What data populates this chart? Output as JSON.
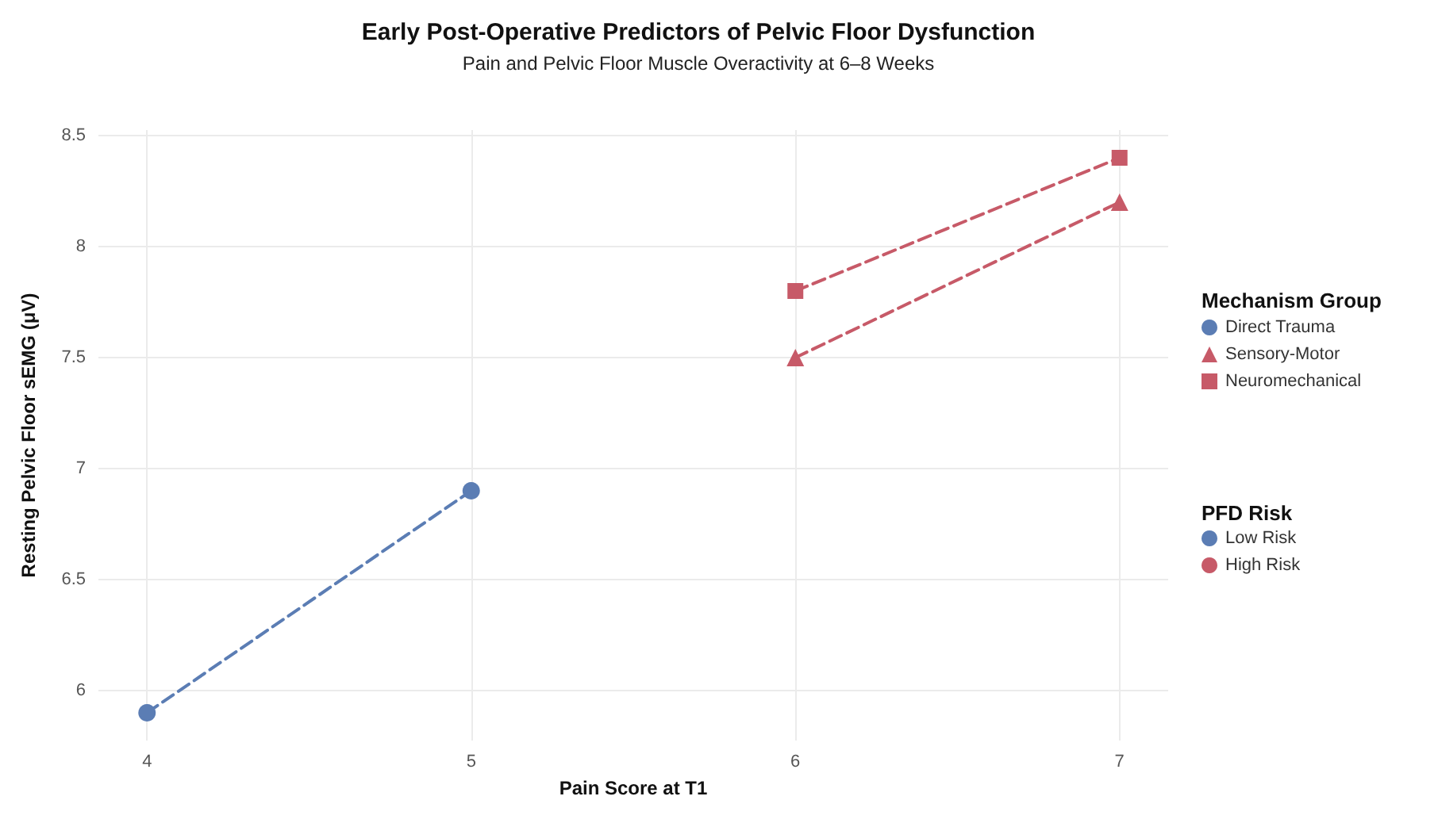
{
  "chart_data": {
    "type": "line",
    "title": "Early Post-Operative Predictors of Pelvic Floor Dysfunction",
    "subtitle": "Pain and Pelvic Floor Muscle Overactivity at 6–8 Weeks",
    "xlabel": "Pain Score at T1",
    "ylabel": "Resting Pelvic Floor sEMG (μV)",
    "legend_title": [
      "Mechanism Group",
      "PFD Risk"
    ],
    "series": [
      {
        "name": "Direct Trauma",
        "color": "#5b7db4",
        "marker": "circle",
        "x": [
          4,
          5
        ],
        "values": [
          5.9,
          6.9
        ]
      },
      {
        "name": "Sensory-Motor",
        "color": "#c75a68",
        "marker": "triangle",
        "x": [
          6,
          7
        ],
        "values": [
          7.5,
          8.2
        ]
      },
      {
        "name": "Neuromechanical",
        "color": "#c75a68",
        "marker": "square",
        "x": [
          6,
          7
        ],
        "values": [
          7.8,
          8.4
        ]
      },
      {
        "name": "Low Risk",
        "color": "#5b7db4",
        "marker": "circle"
      },
      {
        "name": "High Risk",
        "color": "#c75a68",
        "marker": "circle"
      }
    ],
    "xlim": [
      3.85,
      7.15
    ],
    "xticks": [
      4,
      5,
      6,
      7
    ],
    "ylim": [
      5.775,
      8.525
    ],
    "yticks": [
      6,
      6.5,
      7,
      7.5,
      8,
      8.5
    ],
    "grid": true,
    "legend": "right",
    "line_style": "dashed"
  }
}
